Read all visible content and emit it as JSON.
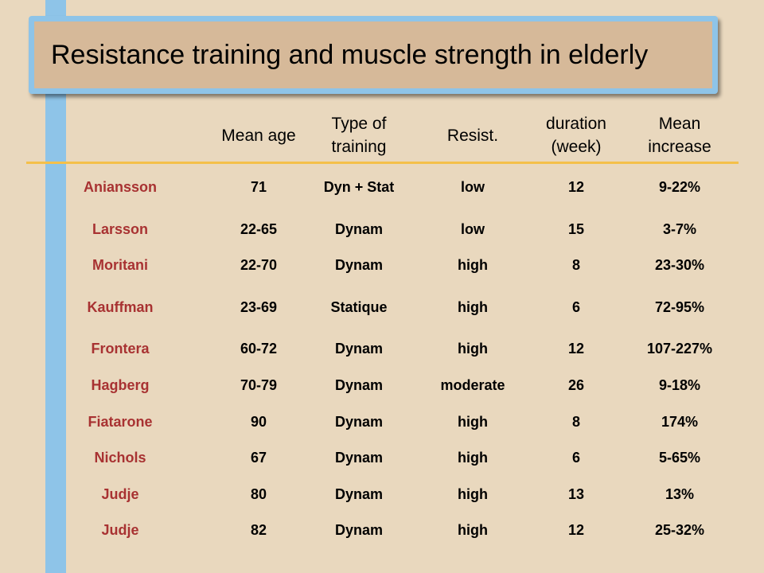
{
  "title": "Resistance training and muscle strength in elderly",
  "columns": {
    "age": [
      "Mean age"
    ],
    "type": [
      "Type of",
      "training"
    ],
    "resist": [
      "Resist."
    ],
    "duration": [
      "duration",
      "(week)"
    ],
    "increase": [
      "Mean",
      "increase"
    ]
  },
  "rows": [
    {
      "name": "Aniansson",
      "age": "71",
      "type": "Dyn + Stat",
      "resist": "low",
      "duration": "12",
      "increase": "9-22%"
    },
    {
      "name": "Larsson",
      "age": "22-65",
      "type": "Dynam",
      "resist": "low",
      "duration": "15",
      "increase": "3-7%"
    },
    {
      "name": "Moritani",
      "age": "22-70",
      "type": "Dynam",
      "resist": "high",
      "duration": "8",
      "increase": "23-30%"
    },
    {
      "name": "Kauffman",
      "age": "23-69",
      "type": "Statique",
      "resist": "high",
      "duration": "6",
      "increase": "72-95%"
    },
    {
      "name": "Frontera",
      "age": "60-72",
      "type": "Dynam",
      "resist": "high",
      "duration": "12",
      "increase": "107-227%"
    },
    {
      "name": "Hagberg",
      "age": "70-79",
      "type": "Dynam",
      "resist": "moderate",
      "duration": "26",
      "increase": "9-18%"
    },
    {
      "name": "Fiatarone",
      "age": "90",
      "type": "Dynam",
      "resist": "high",
      "duration": "8",
      "increase": "174%"
    },
    {
      "name": "Nichols",
      "age": "67",
      "type": "Dynam",
      "resist": "high",
      "duration": "6",
      "increase": "5-65%"
    },
    {
      "name": "Judje",
      "age": "80",
      "type": "Dynam",
      "resist": "high",
      "duration": "13",
      "increase": "13%"
    },
    {
      "name": "Judje",
      "age": "82",
      "type": "Dynam",
      "resist": "high",
      "duration": "12",
      "increase": "25-32%"
    }
  ],
  "colors": {
    "background": "#e9d8be",
    "accent_blue": "#8ec4e8",
    "title_fill": "#d6b999",
    "rule_line": "#f4c04a",
    "name_color": "#a83232"
  }
}
